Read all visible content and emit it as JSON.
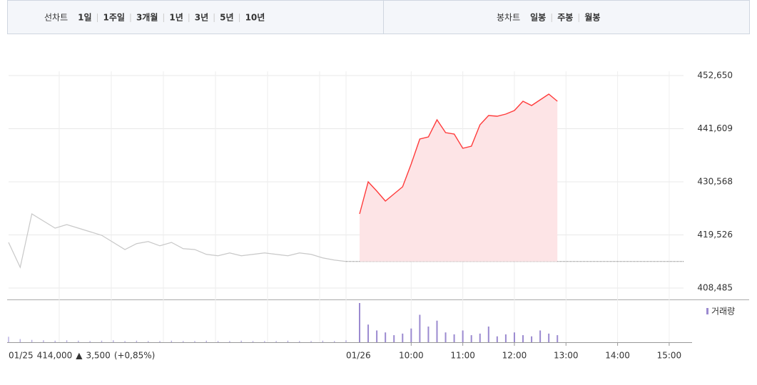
{
  "toolbar": {
    "line_chart_label": "선차트",
    "line_periods": [
      "1일",
      "1주일",
      "3개월",
      "1년",
      "3년",
      "5년",
      "10년"
    ],
    "candle_chart_label": "봉차트",
    "candle_periods": [
      "일봉",
      "주봉",
      "월봉"
    ]
  },
  "chart_data": {
    "type": "line",
    "ylim": [
      406114,
      457985
    ],
    "yticks": [
      {
        "value": 408485,
        "label": "408,485"
      },
      {
        "value": 419526,
        "label": "419,526"
      },
      {
        "value": 430568,
        "label": "430,568"
      },
      {
        "value": 441609,
        "label": "441,609"
      },
      {
        "value": 452650,
        "label": "452,650"
      }
    ],
    "previous_day": {
      "date": "01/25",
      "color": "#c8c8c8",
      "values": [
        417970,
        412783,
        423898,
        422416,
        420934,
        421675,
        420934,
        420193,
        419452,
        417970,
        416488,
        417711,
        418155,
        417266,
        417970,
        416673,
        416488,
        415488,
        415191,
        415784,
        415191,
        415488,
        415784,
        415488,
        415191,
        415784,
        415488,
        414747,
        414302,
        414006
      ],
      "volume": [
        14,
        8,
        6,
        5,
        4,
        5,
        4,
        3,
        4,
        5,
        3,
        4,
        3,
        3,
        4,
        3,
        3,
        4,
        3,
        3,
        4,
        3,
        3,
        3,
        4,
        3,
        3,
        4,
        3,
        5
      ]
    },
    "date": "01/26",
    "x": [
      "09:00",
      "09:10",
      "09:20",
      "09:30",
      "09:40",
      "09:50",
      "10:00",
      "10:10",
      "10:20",
      "10:30",
      "10:40",
      "10:50",
      "11:00",
      "11:10",
      "11:20",
      "11:30",
      "11:40",
      "11:50",
      "12:00",
      "12:10",
      "12:20",
      "12:30",
      "12:40",
      "12:50"
    ],
    "xlim": [
      "09:00",
      "15:15"
    ],
    "xticks": [
      "10:00",
      "11:00",
      "12:00",
      "13:00",
      "14:00",
      "15:00"
    ],
    "series": [
      {
        "color": "#ff3b3b",
        "values": [
          423898,
          430567,
          428640,
          426565,
          428047,
          429529,
          434272,
          439459,
          439903,
          443460,
          440793,
          440496,
          437532,
          437977,
          442423,
          444349,
          444201,
          444646,
          445387,
          447313,
          446424,
          447610,
          448795,
          447313
        ]
      }
    ],
    "volume": {
      "label": "거래량",
      "color": "#9b8ad0",
      "vlim": [
        0,
        100
      ],
      "values": [
        100,
        45,
        30,
        25,
        18,
        22,
        35,
        70,
        40,
        55,
        25,
        20,
        30,
        18,
        22,
        40,
        15,
        20,
        25,
        18,
        15,
        30,
        22,
        18
      ]
    },
    "summary": {
      "date": "01/25",
      "close": {
        "value": 414000,
        "label": "414,000"
      },
      "direction": "▲",
      "change": {
        "value": 3500,
        "label": "3,500"
      },
      "change_pct": {
        "value": 0.85,
        "label": "(+0,85%)"
      }
    }
  }
}
